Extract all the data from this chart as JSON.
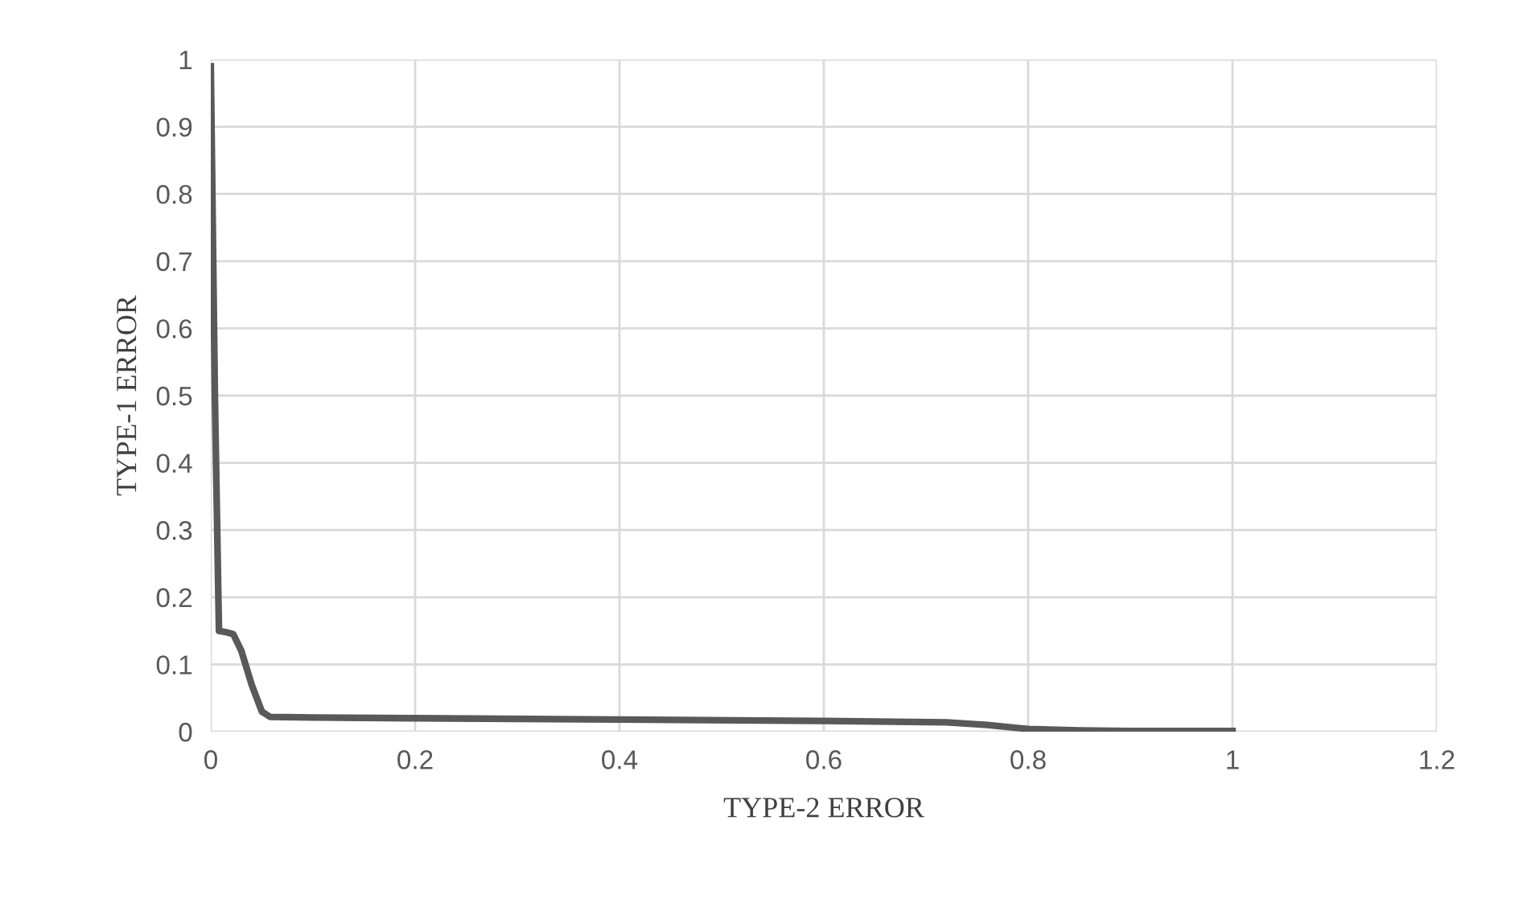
{
  "chart_data": {
    "type": "line",
    "xlabel": "TYPE-2 ERROR",
    "ylabel": "TYPE-1 ERROR",
    "series": [
      {
        "color": "#595959",
        "x": [
          0,
          0.004,
          0.008,
          0.015,
          0.022,
          0.03,
          0.04,
          0.05,
          0.058,
          0.1,
          0.2,
          0.4,
          0.6,
          0.72,
          0.76,
          0.8,
          0.85,
          0.9,
          1
        ],
        "values": [
          0.99,
          0.5,
          0.15,
          0.148,
          0.145,
          0.12,
          0.07,
          0.03,
          0.022,
          0.021,
          0.02,
          0.018,
          0.016,
          0.014,
          0.01,
          0.004,
          0.002,
          0.001,
          0.001
        ]
      }
    ],
    "xlim": [
      0,
      1.2
    ],
    "xticks": [
      0,
      0.2,
      0.4,
      0.6,
      0.8,
      1,
      1.2
    ],
    "ylim": [
      0,
      1
    ],
    "yticks": [
      0,
      0.1,
      0.2,
      0.3,
      0.4,
      0.5,
      0.6,
      0.7,
      0.8,
      0.9,
      1
    ],
    "grid": true,
    "line_style": "solid",
    "marker": "none"
  }
}
